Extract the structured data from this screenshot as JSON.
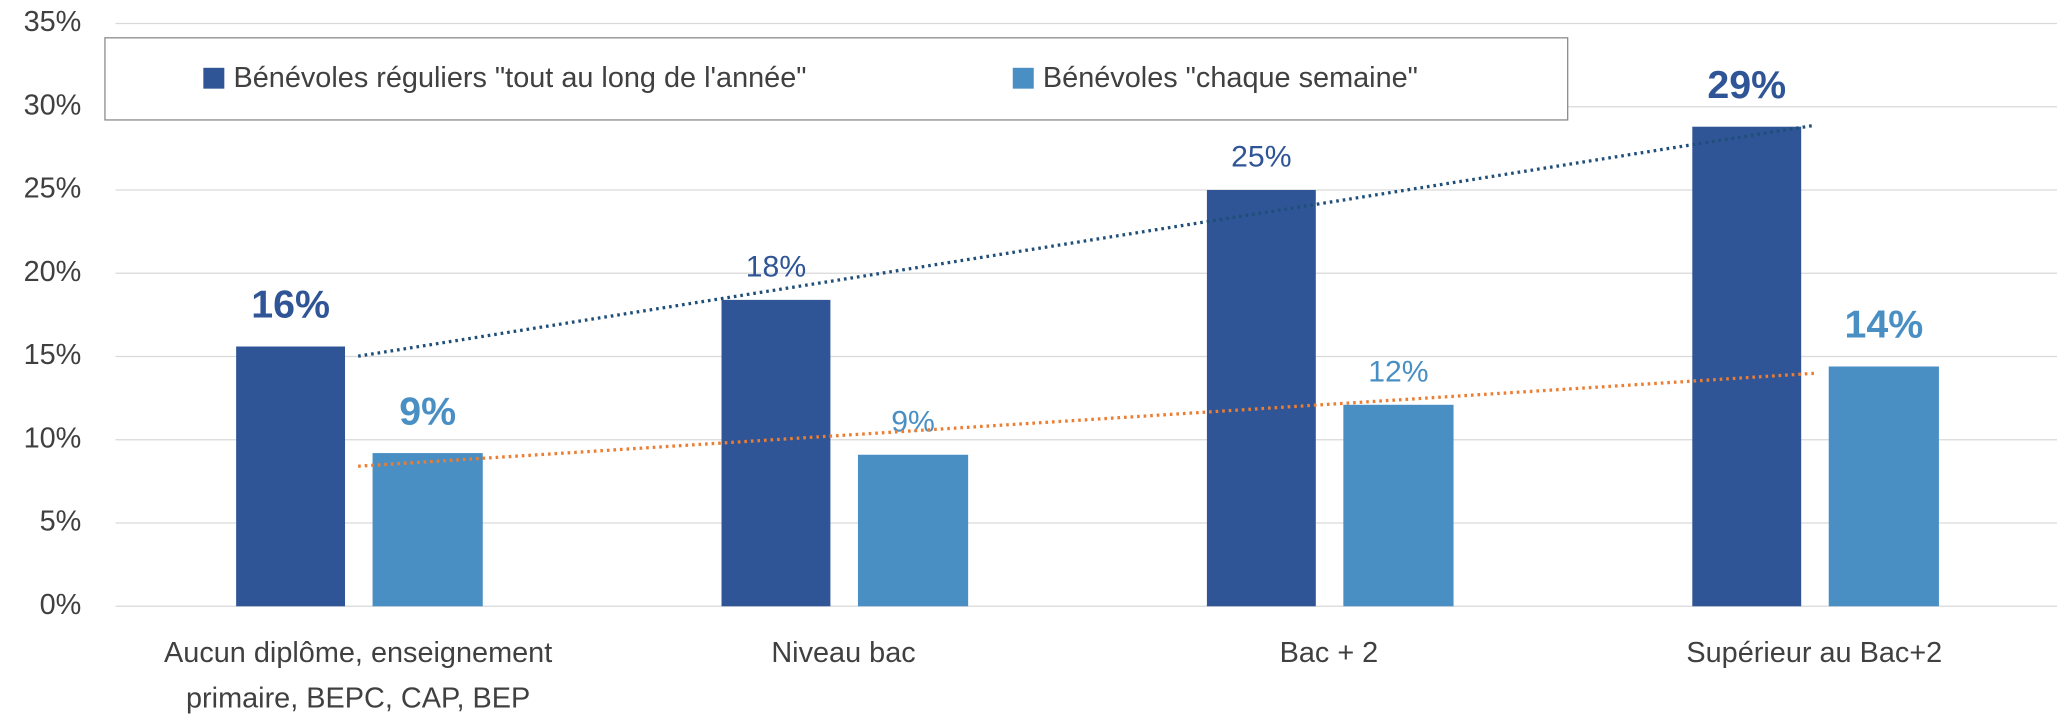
{
  "chart_data": {
    "type": "bar",
    "categories": [
      [
        "Aucun diplôme, enseignement",
        "primaire, BEPC, CAP, BEP"
      ],
      [
        "Niveau bac"
      ],
      [
        "Bac + 2"
      ],
      [
        "Supérieur au Bac+2"
      ]
    ],
    "series": [
      {
        "name": "Bénévoles réguliers \"tout au long de l'année\"",
        "color": "#2f5597",
        "label_color": "#2f5597",
        "trendline_color": "#1f4e79",
        "values": [
          15.6,
          18.4,
          25.0,
          28.8
        ],
        "value_labels": [
          "16%",
          "18%",
          "25%",
          "29%"
        ]
      },
      {
        "name": "Bénévoles \"chaque semaine\"",
        "color": "#4a8fc4",
        "label_color": "#4a8fc4",
        "trendline_color": "#ed7d31",
        "values": [
          9.2,
          9.1,
          12.1,
          14.4
        ],
        "value_labels": [
          "9%",
          "9%",
          "12%",
          "14%"
        ]
      }
    ],
    "ylim": [
      0,
      35
    ],
    "yticks": [
      {
        "value": 0,
        "label": "0%"
      },
      {
        "value": 5,
        "label": "5%"
      },
      {
        "value": 10,
        "label": "10%"
      },
      {
        "value": 15,
        "label": "15%"
      },
      {
        "value": 20,
        "label": "20%"
      },
      {
        "value": 25,
        "label": "25%"
      },
      {
        "value": 30,
        "label": "30%"
      },
      {
        "value": 35,
        "label": "35%"
      }
    ],
    "grid": true,
    "trendline": true,
    "legend": "top-left"
  }
}
